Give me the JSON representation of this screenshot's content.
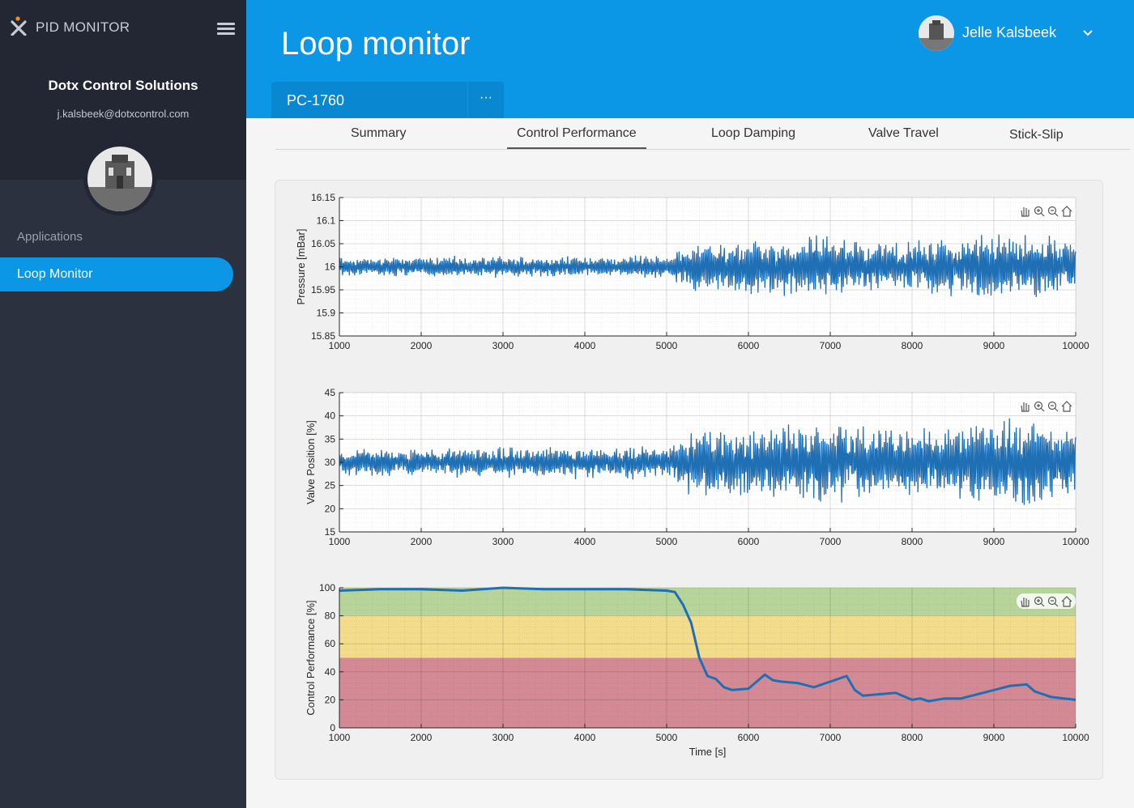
{
  "sidebar": {
    "brand": "PID MONITOR",
    "company": "Dotx Control Solutions",
    "email": "j.kalsbeek@dotxcontrol.com",
    "section_label": "Applications",
    "nav_item": "Loop Monitor"
  },
  "header": {
    "title": "Loop monitor",
    "user_name": "Jelle Kalsbeek",
    "loop_name": "PC-1760",
    "more_label": "···"
  },
  "tabs": [
    "Summary",
    "Control Performance",
    "Loop Damping",
    "Valve Travel",
    "Stick-Slip"
  ],
  "active_tab": "Control Performance",
  "colors": {
    "accent": "#0b97e6",
    "sidebar": "#2c3140",
    "series": "#1f6fb5",
    "zone_good": "#b7d59a",
    "zone_fair": "#f3dc8c",
    "zone_poor": "#d48a94"
  },
  "chart_data": [
    {
      "type": "line",
      "ylabel": "Pressure [mBar]",
      "xlim": [
        1000,
        10000
      ],
      "ylim": [
        15.85,
        16.15
      ],
      "xticks": [
        1000,
        2000,
        3000,
        4000,
        5000,
        6000,
        7000,
        8000,
        9000,
        10000
      ],
      "yticks": [
        "15.85",
        "15.9",
        "15.95",
        "16",
        "16.05",
        "16.1",
        "16.15"
      ],
      "grid": true,
      "mean": 16.0,
      "amplitude_envelope": {
        "x": [
          1000,
          5000,
          5300,
          6000,
          7000,
          7500,
          8500,
          9000,
          9300,
          10000
        ],
        "y": [
          0.02,
          0.025,
          0.05,
          0.06,
          0.07,
          0.05,
          0.06,
          0.07,
          0.07,
          0.06
        ]
      },
      "toolbar": [
        "pan-icon",
        "zoom-in-icon",
        "zoom-out-icon",
        "home-icon"
      ]
    },
    {
      "type": "line",
      "ylabel": "Valve Position [%]",
      "xlim": [
        1000,
        10000
      ],
      "ylim": [
        15,
        45
      ],
      "xticks": [
        1000,
        2000,
        3000,
        4000,
        5000,
        6000,
        7000,
        8000,
        9000,
        10000
      ],
      "yticks": [
        "15",
        "20",
        "25",
        "30",
        "35",
        "40",
        "45"
      ],
      "grid": true,
      "mean": 30,
      "amplitude_envelope": {
        "x": [
          1000,
          5000,
          5300,
          6000,
          7000,
          7500,
          8500,
          9000,
          9300,
          10000
        ],
        "y": [
          3,
          3.5,
          7,
          8,
          9,
          7,
          8,
          9,
          10,
          8
        ]
      },
      "toolbar": [
        "pan-icon",
        "zoom-in-icon",
        "zoom-out-icon",
        "home-icon"
      ]
    },
    {
      "type": "line",
      "xlabel": "Time [s]",
      "ylabel": "Control Performance [%]",
      "xlim": [
        1000,
        10000
      ],
      "ylim": [
        0,
        100
      ],
      "xticks": [
        1000,
        2000,
        3000,
        4000,
        5000,
        6000,
        7000,
        8000,
        9000,
        10000
      ],
      "yticks": [
        "0",
        "20",
        "40",
        "60",
        "80",
        "100"
      ],
      "grid": true,
      "zones": [
        {
          "from": 80,
          "to": 100,
          "color": "#b7d59a"
        },
        {
          "from": 50,
          "to": 80,
          "color": "#f3dc8c"
        },
        {
          "from": 0,
          "to": 50,
          "color": "#d48a94"
        }
      ],
      "x": [
        1000,
        1500,
        2000,
        2500,
        3000,
        3500,
        4000,
        4500,
        5000,
        5100,
        5200,
        5300,
        5400,
        5500,
        5600,
        5700,
        5800,
        6000,
        6200,
        6300,
        6400,
        6600,
        6800,
        7000,
        7200,
        7300,
        7400,
        7600,
        7800,
        8000,
        8100,
        8200,
        8400,
        8600,
        8800,
        9000,
        9200,
        9400,
        9500,
        9700,
        10000
      ],
      "y": [
        98,
        99,
        99,
        98,
        100,
        99,
        99,
        99,
        98,
        97,
        88,
        75,
        50,
        37,
        35,
        29,
        27,
        28,
        38,
        34,
        33,
        32,
        29,
        33,
        37,
        27,
        23,
        24,
        25,
        20,
        21,
        19,
        21,
        21,
        24,
        27,
        30,
        31,
        26,
        22,
        20
      ],
      "toolbar": [
        "pan-icon",
        "zoom-in-icon",
        "zoom-out-icon",
        "home-icon"
      ]
    }
  ]
}
